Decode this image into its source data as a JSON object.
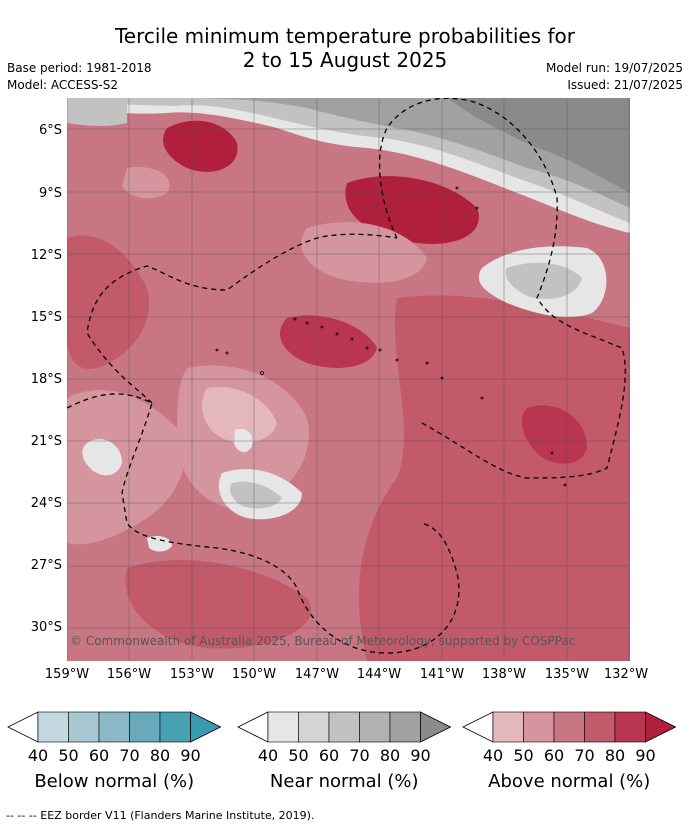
{
  "title": {
    "line1": "Tercile minimum temperature probabilities for",
    "line2": "2 to 15 August 2025"
  },
  "meta": {
    "base_period": "Base period: 1981-2018",
    "model": "Model: ACCESS-S2",
    "model_run": "Model run: 19/07/2025",
    "issued": "Issued: 21/07/2025"
  },
  "copyright": "© Commonwealth of Australia 2025, Bureau of Meteorology, supported by COSPPac",
  "axes": {
    "lat_labels": [
      "6°S",
      "9°S",
      "12°S",
      "15°S",
      "18°S",
      "21°S",
      "24°S",
      "27°S",
      "30°S"
    ],
    "lon_labels": [
      "159°W",
      "156°W",
      "153°W",
      "150°W",
      "147°W",
      "144°W",
      "141°W",
      "138°W",
      "135°W",
      "132°W"
    ]
  },
  "legends": [
    {
      "title": "Below normal (%)",
      "ticks": [
        "40",
        "50",
        "60",
        "70",
        "80",
        "90"
      ],
      "colors": [
        "#c3d8df",
        "#a7c8d2",
        "#8ab8c6",
        "#6aa9bb",
        "#48a1b3"
      ]
    },
    {
      "title": "Near normal (%)",
      "ticks": [
        "40",
        "50",
        "60",
        "70",
        "80",
        "90"
      ],
      "colors": [
        "#e6e6e6",
        "#d4d4d4",
        "#c2c2c2",
        "#b2b2b2",
        "#a1a1a1"
      ]
    },
    {
      "title": "Above normal (%)",
      "ticks": [
        "40",
        "50",
        "60",
        "70",
        "80",
        "90"
      ],
      "colors": [
        "#e3b7bd",
        "#d4959e",
        "#c97684",
        "#c35a69",
        "#b93550"
      ]
    }
  ],
  "footer": "--  --  -- EEZ border V11 (Flanders Marine Institute, 2019).",
  "palette": {
    "above_40": "#e3b7bd",
    "above_50": "#d4959e",
    "above_60": "#c97684",
    "above_70": "#c35a69",
    "above_80": "#b93550",
    "above_90": "#b0203d",
    "near_40": "#e6e6e6",
    "near_50": "#d4d4d4",
    "near_60": "#c2c2c2",
    "near_70": "#b2b2b2",
    "near_80": "#a1a1a1",
    "near_90": "#8a8a8a"
  }
}
